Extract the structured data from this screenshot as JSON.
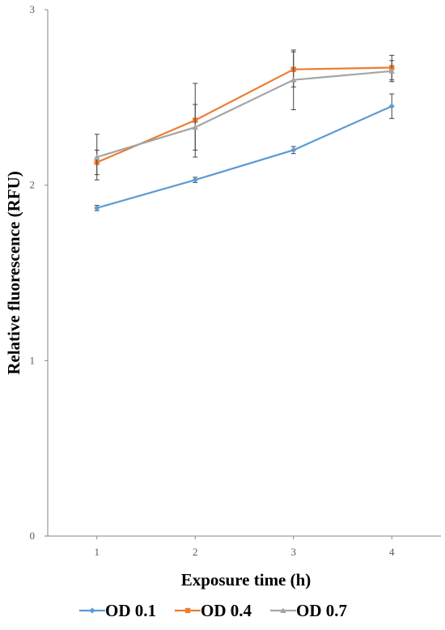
{
  "chart_data": {
    "type": "line",
    "title": "",
    "xlabel": "Exposure time (h)",
    "ylabel": "Relative fluorescence (RFU)",
    "categories": [
      "1",
      "2",
      "3",
      "4"
    ],
    "x": [
      1,
      2,
      3,
      4
    ],
    "ylim": [
      0,
      3
    ],
    "yticks": [
      "0",
      "1",
      "2",
      "3"
    ],
    "grid": false,
    "legend_position": "bottom",
    "series": [
      {
        "name": "OD 0.1",
        "color": "#5B9BD5",
        "marker": "diamond",
        "values": [
          1.87,
          2.03,
          2.2,
          2.45
        ],
        "errors": [
          0.015,
          0.015,
          0.02,
          0.07
        ]
      },
      {
        "name": "OD 0.4",
        "color": "#ED7D31",
        "marker": "square",
        "values": [
          2.13,
          2.37,
          2.66,
          2.67
        ],
        "errors": [
          0.07,
          0.21,
          0.1,
          0.07
        ]
      },
      {
        "name": "OD 0.7",
        "color": "#A5A5A5",
        "marker": "triangle",
        "values": [
          2.16,
          2.33,
          2.6,
          2.65
        ],
        "errors": [
          0.13,
          0.13,
          0.17,
          0.06
        ]
      }
    ]
  }
}
